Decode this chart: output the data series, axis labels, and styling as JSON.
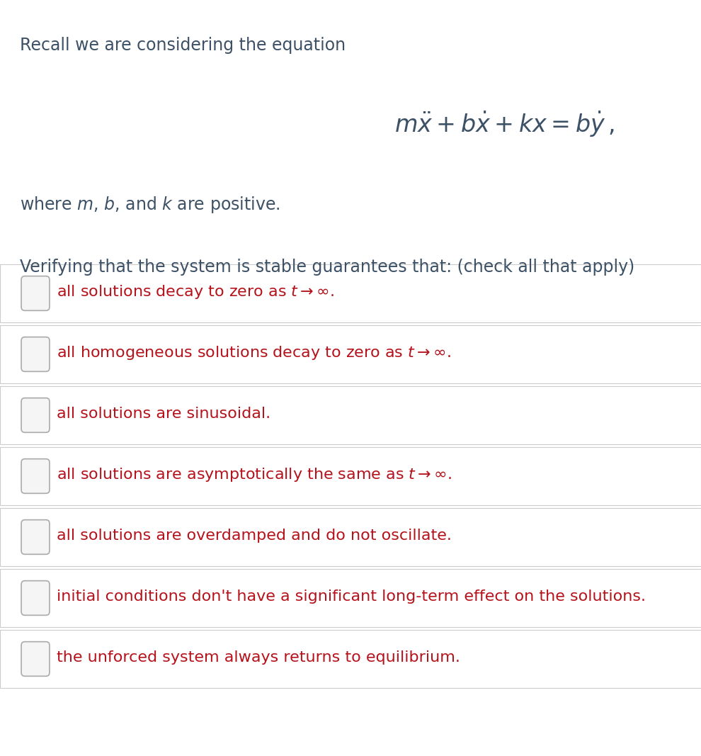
{
  "background_color": "#ffffff",
  "intro_text": "Recall we are considering the equation",
  "equation": "$m\\ddot{x} + b\\dot{x} + kx = b\\dot{y}\\,,$",
  "where_text": "where $\\mathit{m}$, $\\mathit{b}$, and $\\mathit{k}$ are positive.",
  "verify_text": "Verifying that the system is stable guarantees that: (check all that apply)",
  "options": [
    "all solutions decay to zero as $t \\rightarrow \\infty$.",
    "all homogeneous solutions decay to zero as $t \\rightarrow \\infty$.",
    "all solutions are sinusoidal.",
    "all solutions are asymptotically the same as $t \\rightarrow \\infty$.",
    "all solutions are overdamped and do not oscillate.",
    "initial conditions don't have a significant long-term effect on the solutions.",
    "the unforced system always returns to equilibrium."
  ],
  "text_color_dark": "#3d5166",
  "text_color_red": "#b5121b",
  "checkbox_color": "#f5f5f5",
  "checkbox_border": "#aaaaaa",
  "box_border_color": "#cccccc",
  "box_bg_color": "#ffffff",
  "header_fontsize": 17,
  "option_fontsize": 16,
  "equation_fontsize": 24
}
